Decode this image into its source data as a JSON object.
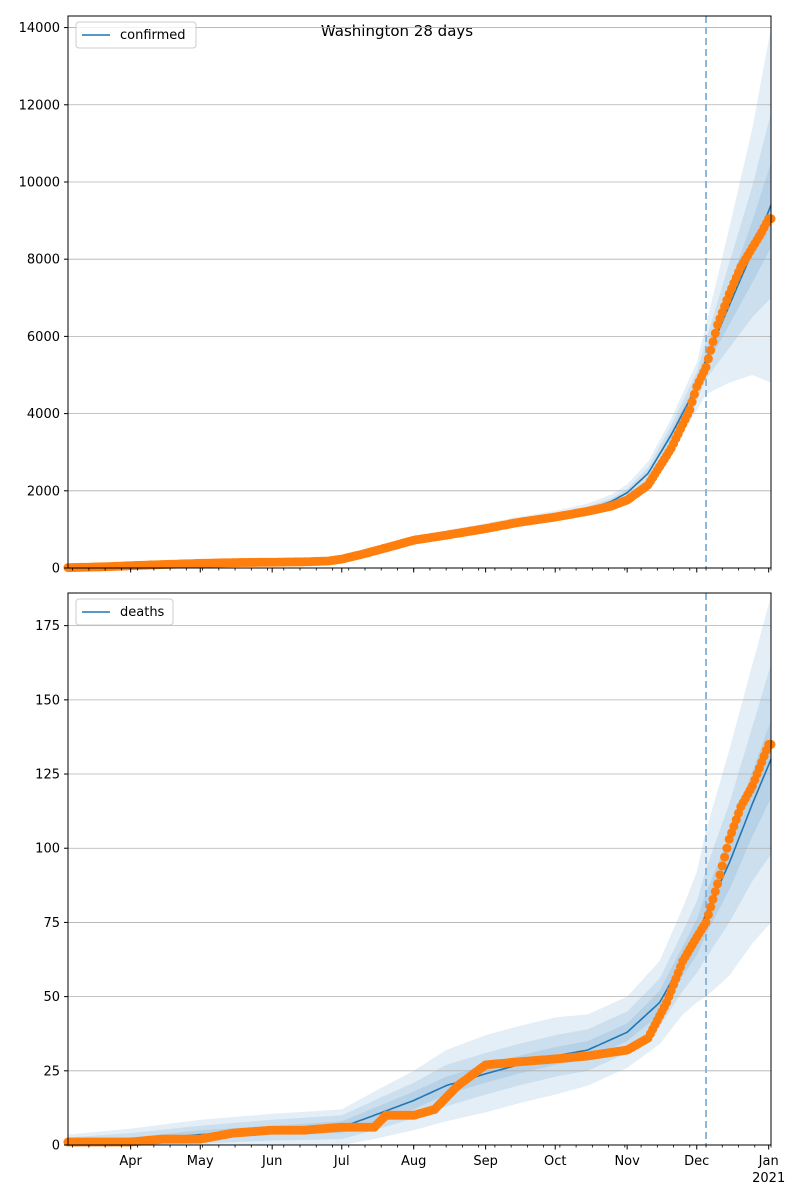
{
  "figure": {
    "suptitle": "Washington 28 days",
    "colors": {
      "model_line": "#1f77b4",
      "band": "#1f77b4",
      "observed": "#ff7f0e",
      "grid": "#b0b0b0",
      "forecast_marker": "#7fb1d9"
    }
  },
  "chart_data": [
    {
      "type": "line",
      "name": "confirmed-panel",
      "title": "",
      "xlabel": "",
      "ylabel": "",
      "x_start": "2020-03-05",
      "x_end": "2021-01-02",
      "xlim": [
        "2020-03-05",
        "2021-01-02"
      ],
      "ylim": [
        0,
        14300
      ],
      "yticks": [
        0,
        2000,
        4000,
        6000,
        8000,
        10000,
        12000,
        14000
      ],
      "ytick_labels": [
        "0",
        "2000",
        "4000",
        "6000",
        "8000",
        "10000",
        "12000",
        "14000"
      ],
      "grid": "horizontal",
      "legend": {
        "placement": "top-left",
        "entries": [
          "confirmed"
        ]
      },
      "forecast_start": "2020-12-05",
      "model_curve": {
        "x": [
          "2020-03-05",
          "2020-04-01",
          "2020-05-01",
          "2020-06-01",
          "2020-06-20",
          "2020-07-01",
          "2020-07-15",
          "2020-08-01",
          "2020-08-15",
          "2020-09-01",
          "2020-09-15",
          "2020-10-01",
          "2020-10-15",
          "2020-10-25",
          "2020-11-01",
          "2020-11-10",
          "2020-11-20",
          "2020-12-01",
          "2020-12-05",
          "2020-12-15",
          "2020-12-25",
          "2021-01-02"
        ],
        "y": [
          20,
          60,
          110,
          140,
          160,
          240,
          460,
          720,
          880,
          1050,
          1200,
          1350,
          1520,
          1720,
          1950,
          2450,
          3450,
          4700,
          5400,
          6800,
          8200,
          9400
        ],
        "band_widths": [
          [
            0,
            0,
            0,
            0,
            0,
            0,
            0,
            0,
            0,
            0,
            0,
            0,
            0,
            0,
            0,
            0,
            100,
            150,
            200,
            500,
            800,
            1100
          ],
          [
            0,
            0,
            0,
            0,
            0,
            0,
            0,
            20,
            40,
            50,
            60,
            60,
            70,
            80,
            100,
            150,
            250,
            380,
            500,
            1100,
            1700,
            2400
          ],
          [
            0,
            0,
            0,
            0,
            0,
            0,
            20,
            60,
            90,
            110,
            120,
            130,
            150,
            180,
            220,
            300,
            420,
            620,
            900,
            2000,
            3200,
            4600
          ]
        ]
      },
      "observed": {
        "x": [
          "2020-03-05",
          "2020-03-20",
          "2020-04-01",
          "2020-04-15",
          "2020-05-01",
          "2020-05-15",
          "2020-06-01",
          "2020-06-15",
          "2020-06-25",
          "2020-07-01",
          "2020-07-10",
          "2020-07-20",
          "2020-08-01",
          "2020-08-15",
          "2020-09-01",
          "2020-09-15",
          "2020-10-01",
          "2020-10-15",
          "2020-10-25",
          "2020-11-01",
          "2020-11-10",
          "2020-11-20",
          "2020-11-28",
          "2020-12-01",
          "2020-12-05",
          "2020-12-10",
          "2020-12-15",
          "2020-12-20",
          "2020-12-25",
          "2020-12-29",
          "2021-01-01"
        ],
        "y": [
          10,
          30,
          60,
          90,
          120,
          140,
          150,
          160,
          180,
          230,
          360,
          520,
          720,
          850,
          1020,
          1180,
          1320,
          1470,
          1600,
          1760,
          2150,
          3100,
          4100,
          4700,
          5200,
          6300,
          7100,
          7800,
          8300,
          8700,
          9050
        ]
      }
    },
    {
      "type": "line",
      "name": "deaths-panel",
      "title": "",
      "xlabel": "",
      "ylabel": "",
      "xlim": [
        "2020-03-05",
        "2021-01-02"
      ],
      "ylim": [
        0,
        186
      ],
      "yticks": [
        0,
        25,
        50,
        75,
        100,
        125,
        150,
        175
      ],
      "ytick_labels": [
        "0",
        "25",
        "50",
        "75",
        "100",
        "125",
        "150",
        "175"
      ],
      "xtick_labels": [
        "Apr",
        "May",
        "Jun",
        "Jul",
        "Aug",
        "Sep",
        "Oct",
        "Nov",
        "Dec",
        "Jan"
      ],
      "xtick_dates": [
        "2020-04-01",
        "2020-05-01",
        "2020-06-01",
        "2020-07-01",
        "2020-08-01",
        "2020-09-01",
        "2020-10-01",
        "2020-11-01",
        "2020-12-01",
        "2021-01-01"
      ],
      "year_label": "2021",
      "grid": "horizontal",
      "legend": {
        "placement": "top-left",
        "entries": [
          "deaths"
        ]
      },
      "forecast_start": "2020-12-05",
      "model_curve": {
        "x": [
          "2020-03-05",
          "2020-04-01",
          "2020-05-01",
          "2020-06-01",
          "2020-07-01",
          "2020-07-15",
          "2020-08-01",
          "2020-08-15",
          "2020-09-01",
          "2020-09-15",
          "2020-10-01",
          "2020-10-15",
          "2020-11-01",
          "2020-11-15",
          "2020-11-25",
          "2020-12-01",
          "2020-12-05",
          "2020-12-15",
          "2020-12-25",
          "2021-01-02"
        ],
        "y": [
          0.5,
          1.5,
          3.5,
          5,
          6,
          10,
          15,
          20,
          24,
          27,
          30,
          32,
          38,
          48,
          62,
          70,
          78,
          95,
          115,
          130
        ],
        "band_widths": [
          [
            1,
            1,
            1.5,
            1.5,
            2,
            2.5,
            3,
            3,
            3,
            3,
            3,
            3,
            3,
            4,
            5,
            6,
            7,
            9,
            11,
            13
          ],
          [
            2,
            2.5,
            3,
            3.5,
            4,
            5,
            6,
            7,
            7,
            7,
            7,
            7,
            7,
            8,
            10,
            12,
            15,
            20,
            26,
            32
          ],
          [
            3,
            4,
            5,
            5.5,
            6,
            8,
            10,
            12,
            13,
            13,
            13,
            12,
            12,
            14,
            18,
            22,
            28,
            38,
            47,
            55
          ]
        ]
      },
      "observed": {
        "x": [
          "2020-03-05",
          "2020-04-01",
          "2020-04-15",
          "2020-05-01",
          "2020-05-15",
          "2020-06-01",
          "2020-06-15",
          "2020-07-01",
          "2020-07-15",
          "2020-07-20",
          "2020-08-01",
          "2020-08-10",
          "2020-08-20",
          "2020-09-01",
          "2020-09-15",
          "2020-10-01",
          "2020-10-15",
          "2020-11-01",
          "2020-11-10",
          "2020-11-18",
          "2020-11-25",
          "2020-12-01",
          "2020-12-05",
          "2020-12-10",
          "2020-12-15",
          "2020-12-20",
          "2020-12-25",
          "2021-01-01"
        ],
        "y": [
          1,
          1,
          2,
          2,
          4,
          5,
          5,
          6,
          6,
          10,
          10,
          12,
          20,
          27,
          28,
          29,
          30,
          32,
          36,
          48,
          62,
          70,
          75,
          88,
          103,
          114,
          121,
          135
        ]
      }
    }
  ]
}
